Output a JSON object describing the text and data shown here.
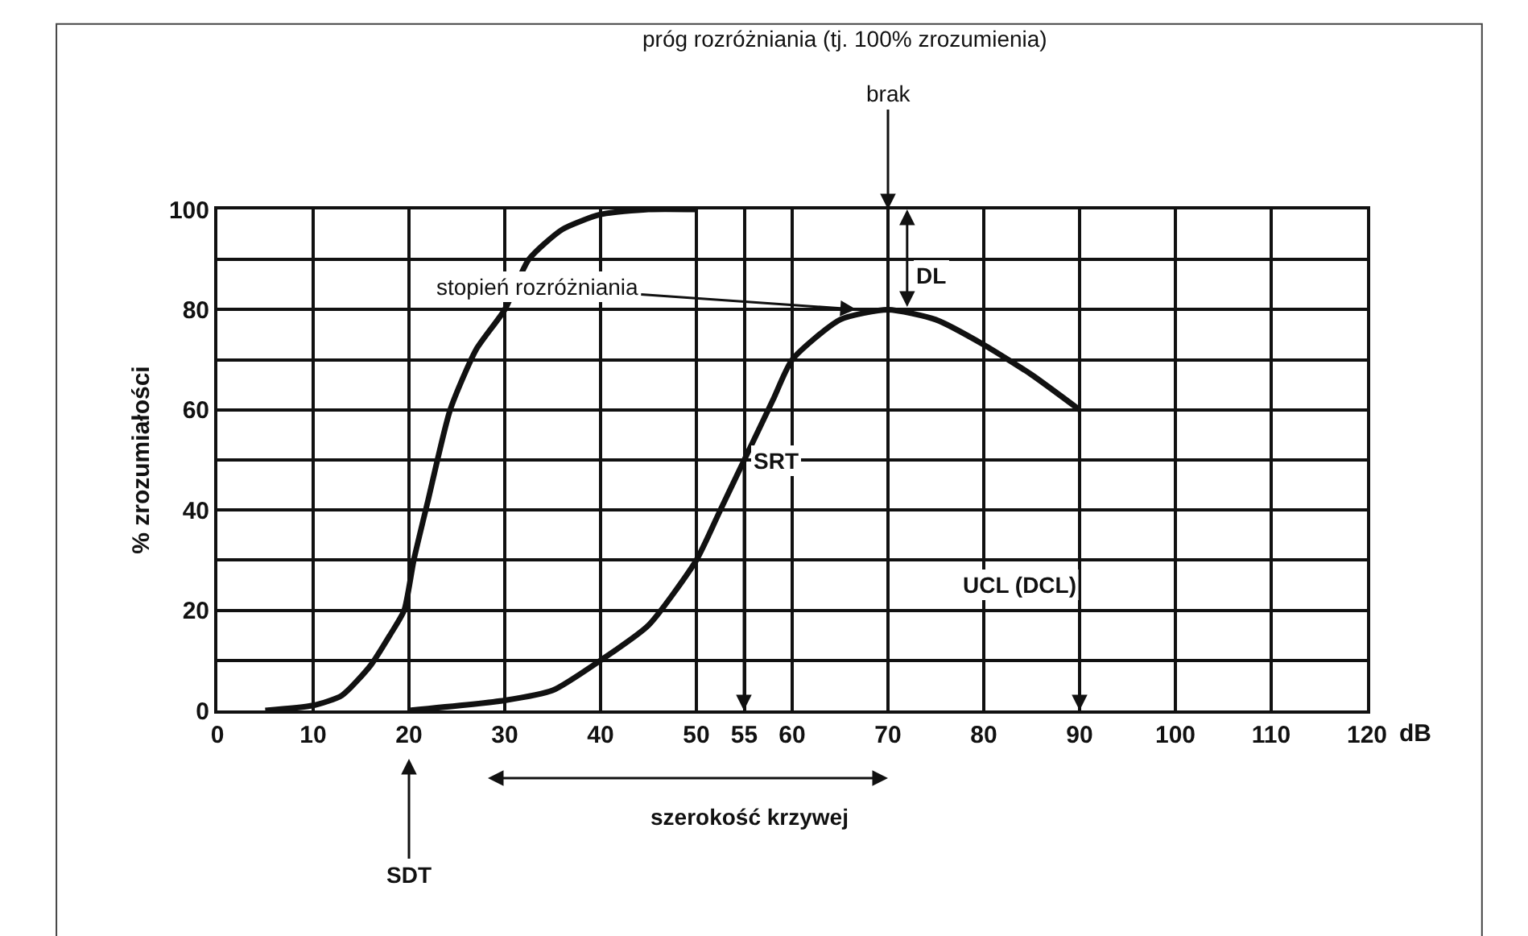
{
  "chart_data": {
    "type": "line",
    "xlabel": "dB",
    "ylabel": "% zrozumiałości",
    "series": [
      {
        "color": "#111111",
        "x": [
          5,
          10,
          13,
          16,
          18,
          19.5,
          20.5,
          22,
          24.3,
          27,
          30,
          32.5,
          36,
          40,
          45,
          50
        ],
        "values": [
          0,
          1,
          3,
          9,
          15,
          20,
          30,
          42,
          60,
          72,
          80,
          90,
          96,
          99,
          100,
          100
        ]
      },
      {
        "color": "#111111",
        "x": [
          20,
          30,
          35,
          40,
          45,
          50,
          52.5,
          55,
          58,
          60,
          65,
          70,
          75,
          80,
          85,
          90
        ],
        "values": [
          0,
          2,
          4,
          10,
          17,
          30,
          40,
          50,
          62,
          70,
          78,
          80,
          78,
          73,
          67,
          60
        ]
      }
    ],
    "xlim": [
      0,
      120
    ],
    "ylim": [
      0,
      100
    ],
    "xticks": [
      0,
      10,
      20,
      30,
      40,
      50,
      55,
      60,
      70,
      80,
      90,
      100,
      110,
      120
    ],
    "yticks": [
      0,
      {
        "value": 10,
        "label": null
      },
      20,
      {
        "value": 30,
        "label": null
      },
      40,
      {
        "value": 50,
        "label": null
      },
      60,
      {
        "value": 70,
        "label": null
      },
      80,
      {
        "value": 90,
        "label": null
      },
      100
    ],
    "grid": true,
    "marker": "none",
    "line_style": "solid",
    "annotations": [
      "próg rozróżniania (tj. 100% zrozumienia)",
      "brak",
      {
        "text": "stopień rozróżniania",
        "x": 67,
        "y": 80
      },
      "DL",
      "SRT",
      "UCL (DCL)",
      "SDT",
      "szerokość krzywej"
    ]
  }
}
